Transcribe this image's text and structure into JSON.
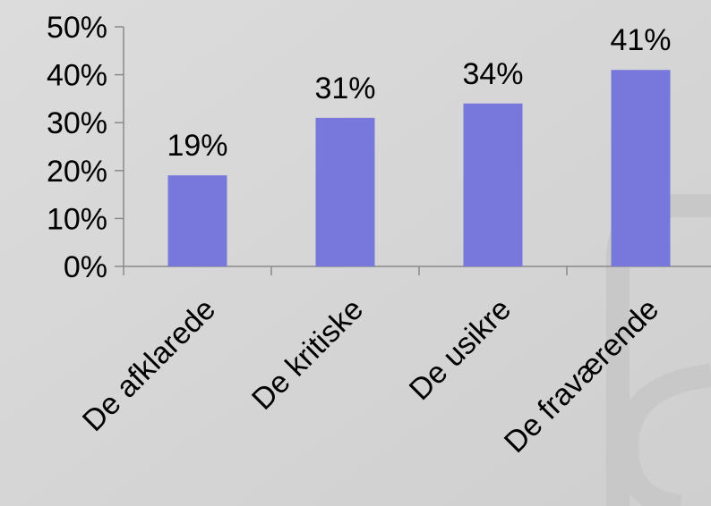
{
  "chart_data": {
    "type": "bar",
    "categories": [
      "De afklarede",
      "De kritiske",
      "De usikre",
      "De fraværende"
    ],
    "values": [
      19,
      31,
      34,
      41
    ],
    "value_labels": [
      "19%",
      "31%",
      "34%",
      "41%"
    ],
    "color": "#7878dc",
    "ylim": [
      0,
      50
    ],
    "yticks": [
      {
        "value": 0,
        "label": "0%"
      },
      {
        "value": 10,
        "label": "10%"
      },
      {
        "value": 20,
        "label": "20%"
      },
      {
        "value": 30,
        "label": "30%"
      },
      {
        "value": 40,
        "label": "40%"
      },
      {
        "value": 50,
        "label": "50%"
      }
    ],
    "grid": false
  }
}
